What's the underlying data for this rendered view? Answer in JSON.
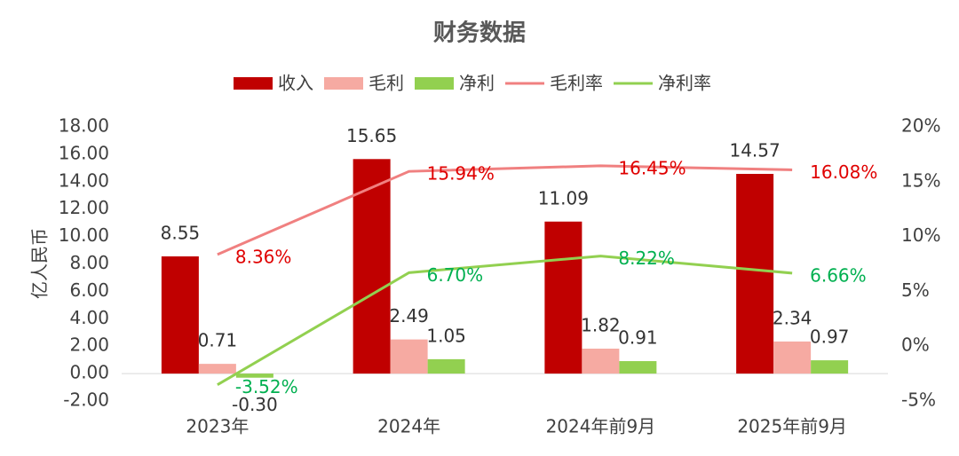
{
  "chart_data": {
    "type": "bar-line",
    "title": "财务数据",
    "y_label": "亿人民币",
    "categories": [
      "2023年",
      "2024年",
      "2024年前9月",
      "2025年前9月"
    ],
    "series": [
      {
        "name": "收入",
        "type": "bar",
        "color": "#c00000",
        "values": [
          8.55,
          15.65,
          11.09,
          14.57
        ],
        "value_labels": [
          "8.55",
          "15.65",
          "11.09",
          "14.57"
        ],
        "label_color": "#333333"
      },
      {
        "name": "毛利",
        "type": "bar",
        "color": "#f6aaa2",
        "values": [
          0.71,
          2.49,
          1.82,
          2.34
        ],
        "value_labels": [
          "0.71",
          "2.49",
          "1.82",
          "2.34"
        ],
        "label_color": "#333333"
      },
      {
        "name": "净利",
        "type": "bar",
        "color": "#92d050",
        "values": [
          -0.3,
          1.05,
          0.91,
          0.97
        ],
        "value_labels": [
          "-0.30",
          "1.05",
          "0.91",
          "0.97"
        ],
        "label_color": "#333333"
      },
      {
        "name": "毛利率",
        "type": "line",
        "axis": "y2",
        "color": "#f08080",
        "values": [
          8.36,
          15.94,
          16.45,
          16.08
        ],
        "value_labels": [
          "8.36%",
          "15.94%",
          "16.45%",
          "16.08%"
        ],
        "label_color": "#e00000"
      },
      {
        "name": "净利率",
        "type": "line",
        "axis": "y2",
        "color": "#92d050",
        "values": [
          -3.52,
          6.7,
          8.22,
          6.66
        ],
        "value_labels": [
          "-3.52%",
          "6.70%",
          "8.22%",
          "6.66%"
        ],
        "label_color": "#00b050"
      }
    ],
    "ylim": [
      -2,
      18
    ],
    "yticks": [
      {
        "value": -2,
        "label": "-2.00"
      },
      {
        "value": 0,
        "label": "0.00"
      },
      {
        "value": 2,
        "label": "2.00"
      },
      {
        "value": 4,
        "label": "4.00"
      },
      {
        "value": 6,
        "label": "6.00"
      },
      {
        "value": 8,
        "label": "8.00"
      },
      {
        "value": 10,
        "label": "10.00"
      },
      {
        "value": 12,
        "label": "12.00"
      },
      {
        "value": 14,
        "label": "14.00"
      },
      {
        "value": 16,
        "label": "16.00"
      },
      {
        "value": 18,
        "label": "18.00"
      }
    ],
    "y2lim": [
      -5,
      20
    ],
    "y2ticks": [
      {
        "value": -5,
        "label": "-5%"
      },
      {
        "value": 0,
        "label": "0%"
      },
      {
        "value": 5,
        "label": "5%"
      },
      {
        "value": 10,
        "label": "10%"
      },
      {
        "value": 15,
        "label": "15%"
      },
      {
        "value": 20,
        "label": "20%"
      }
    ],
    "legend": "top"
  }
}
